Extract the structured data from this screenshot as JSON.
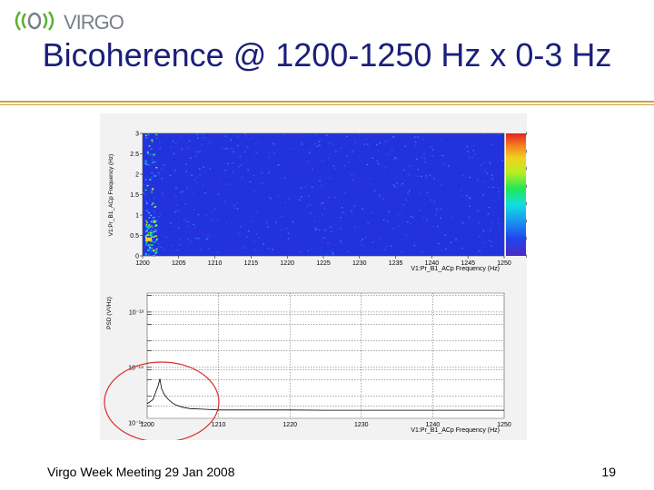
{
  "header": {
    "logo_text": "VIRGO",
    "title": "Bicoherence @ 1200-1250 Hz x 0-3 Hz"
  },
  "footer": {
    "meeting": "Virgo Week Meeting 29 Jan 2008",
    "page_number": "19"
  },
  "colors": {
    "title": "#1a1f7a",
    "rule": "#c9a23a",
    "heatmap_background": "#2233dd",
    "annotation_circle": "#d93030"
  },
  "chart_data": [
    {
      "type": "heatmap",
      "xlabel": "V1:Pr_B1_ACp Frequency (Hz)",
      "ylabel": "V1:Pr_B1_ACp Frequency (Hz)",
      "xlim": [
        1200,
        1250
      ],
      "ylim": [
        0,
        3
      ],
      "x_ticks": [
        "1200",
        "1205",
        "1210",
        "1215",
        "1220",
        "1225",
        "1230",
        "1235",
        "1240",
        "1245",
        "1250"
      ],
      "y_ticks": [
        "0",
        "0.5",
        "1",
        "1.5",
        "2",
        "2.5",
        "3"
      ],
      "colorbar": {
        "range": [
          0,
          0.035
        ],
        "ticks": [
          "0",
          "0.005",
          "0.01",
          "0.015",
          "0.02",
          "0.025",
          "0.03",
          "0.035"
        ]
      }
    },
    {
      "type": "line",
      "xlabel": "V1:Pr_B1_ACp Frequency (Hz)",
      "ylabel": "PSD (V²/Hz)",
      "xlim": [
        1200,
        1250
      ],
      "log_y": true,
      "x_ticks": [
        "1200",
        "1210",
        "1220",
        "1230",
        "1240",
        "1250"
      ],
      "y_ticks": [
        "10⁻¹³",
        "10⁻¹⁴",
        "10⁻¹⁵"
      ],
      "grid": true,
      "series": [
        {
          "x": [
            1200,
            1200.8,
            1201.5,
            1201.8,
            1202.0,
            1202.3,
            1202.6,
            1203.0,
            1203.5,
            1204.0,
            1205.0,
            1206.0,
            1208.0,
            1210.0,
            1215.0,
            1220.0,
            1225.0,
            1230.0,
            1235.0,
            1240.0,
            1245.0,
            1250.0
          ],
          "y": [
            2.2e-15,
            2.6e-15,
            4.5e-15,
            6.2e-15,
            4.2e-15,
            3.4e-15,
            3e-15,
            2.6e-15,
            2.3e-15,
            2.1e-15,
            1.9e-15,
            1.8e-15,
            1.75e-15,
            1.7e-15,
            1.7e-15,
            1.7e-15,
            1.68e-15,
            1.68e-15,
            1.68e-15,
            1.68e-15,
            1.68e-15,
            1.68e-15
          ]
        }
      ]
    }
  ]
}
